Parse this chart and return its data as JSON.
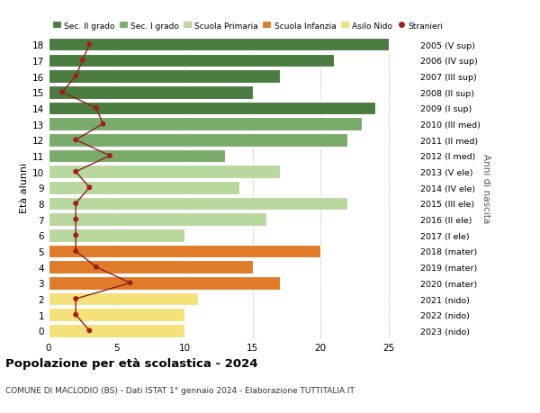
{
  "ages": [
    18,
    17,
    16,
    15,
    14,
    13,
    12,
    11,
    10,
    9,
    8,
    7,
    6,
    5,
    4,
    3,
    2,
    1,
    0
  ],
  "right_labels": [
    "2005 (V sup)",
    "2006 (IV sup)",
    "2007 (III sup)",
    "2008 (II sup)",
    "2009 (I sup)",
    "2010 (III med)",
    "2011 (II med)",
    "2012 (I med)",
    "2013 (V ele)",
    "2014 (IV ele)",
    "2015 (III ele)",
    "2016 (II ele)",
    "2017 (I ele)",
    "2018 (mater)",
    "2019 (mater)",
    "2020 (mater)",
    "2021 (nido)",
    "2022 (nido)",
    "2023 (nido)"
  ],
  "bar_values": [
    25,
    21,
    17,
    15,
    24,
    23,
    22,
    13,
    17,
    14,
    22,
    16,
    10,
    20,
    15,
    17,
    11,
    10,
    10
  ],
  "bar_colors": [
    "#4a7c40",
    "#4a7c40",
    "#4a7c40",
    "#4a7c40",
    "#4a7c40",
    "#7aab6a",
    "#7aab6a",
    "#7aab6a",
    "#b8d89e",
    "#b8d89e",
    "#b8d89e",
    "#b8d89e",
    "#b8d89e",
    "#e07b2a",
    "#e07b2a",
    "#e07b2a",
    "#f5e17a",
    "#f5e17a",
    "#f5e17a"
  ],
  "stranieri_values": [
    3,
    2.5,
    2,
    1,
    3.5,
    4,
    2,
    4.5,
    2,
    3,
    2,
    2,
    2,
    2,
    3.5,
    6,
    2,
    2,
    3
  ],
  "title": "Popolazione per età scolastica - 2024",
  "subtitle": "COMUNE DI MACLODIO (BS) - Dati ISTAT 1° gennaio 2024 - Elaborazione TUTTITALIA.IT",
  "ylabel": "Età alunni",
  "right_ylabel": "Anni di nascita",
  "xlim": [
    0,
    27
  ],
  "xticks": [
    0,
    5,
    10,
    15,
    20,
    25
  ],
  "legend_labels": [
    "Sec. II grado",
    "Sec. I grado",
    "Scuola Primaria",
    "Scuola Infanzia",
    "Asilo Nido",
    "Stranieri"
  ],
  "legend_colors": [
    "#4a7c40",
    "#7aab6a",
    "#b8d89e",
    "#e07b2a",
    "#f5e17a",
    "#a51c1c"
  ],
  "stranieri_color": "#a51c1c",
  "line_color": "#8b2020",
  "bg_color": "#ffffff",
  "bar_edge_color": "#ffffff",
  "bar_height": 0.82
}
